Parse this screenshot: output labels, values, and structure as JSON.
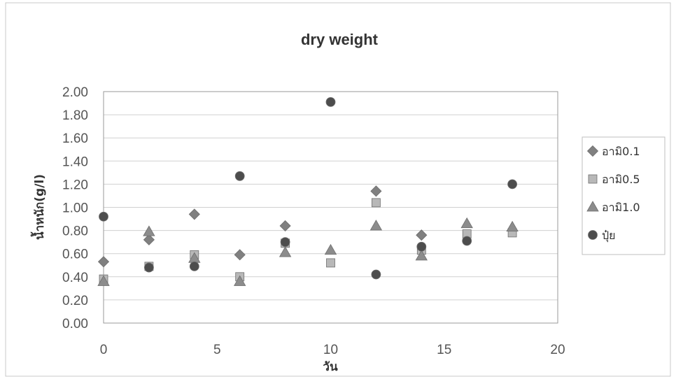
{
  "chart_data": {
    "type": "scatter",
    "title": "dry weight",
    "xlabel": "วัน",
    "ylabel": "น้ำหนัก(g/l)",
    "xlim": [
      0,
      20
    ],
    "ylim": [
      0,
      2.0
    ],
    "x_ticks": [
      "0",
      "5",
      "10",
      "15",
      "20"
    ],
    "y_ticks": [
      "0.00",
      "0.20",
      "0.40",
      "0.60",
      "0.80",
      "1.00",
      "1.20",
      "1.40",
      "1.60",
      "1.80",
      "2.00"
    ],
    "grid": true,
    "legend_position": "right",
    "series": [
      {
        "name": "อามิ0.1",
        "marker": "diamond",
        "color": "#808080",
        "points": [
          [
            0,
            0.53
          ],
          [
            2,
            0.72
          ],
          [
            4,
            0.94
          ],
          [
            6,
            0.59
          ],
          [
            8,
            0.84
          ],
          [
            12,
            1.14
          ],
          [
            14,
            0.76
          ]
        ]
      },
      {
        "name": "อามิ0.5",
        "marker": "square",
        "color": "#b8b8b8",
        "points": [
          [
            0,
            0.38
          ],
          [
            2,
            0.49
          ],
          [
            4,
            0.59
          ],
          [
            6,
            0.4
          ],
          [
            8,
            0.69
          ],
          [
            10,
            0.52
          ],
          [
            12,
            1.04
          ],
          [
            14,
            0.63
          ],
          [
            16,
            0.77
          ],
          [
            18,
            0.78
          ]
        ]
      },
      {
        "name": "อามิ1.0",
        "marker": "triangle",
        "color": "#8c8c8c",
        "points": [
          [
            0,
            0.36
          ],
          [
            2,
            0.79
          ],
          [
            4,
            0.56
          ],
          [
            6,
            0.36
          ],
          [
            8,
            0.61
          ],
          [
            10,
            0.63
          ],
          [
            12,
            0.84
          ],
          [
            14,
            0.58
          ],
          [
            16,
            0.86
          ],
          [
            18,
            0.83
          ]
        ]
      },
      {
        "name": "ปุ๋ย",
        "marker": "circle",
        "color": "#4d4d4d",
        "points": [
          [
            0,
            0.92
          ],
          [
            2,
            0.48
          ],
          [
            4,
            0.49
          ],
          [
            6,
            1.27
          ],
          [
            8,
            0.7
          ],
          [
            10,
            1.91
          ],
          [
            12,
            0.42
          ],
          [
            14,
            0.66
          ],
          [
            16,
            0.71
          ],
          [
            18,
            1.2
          ]
        ]
      }
    ]
  }
}
